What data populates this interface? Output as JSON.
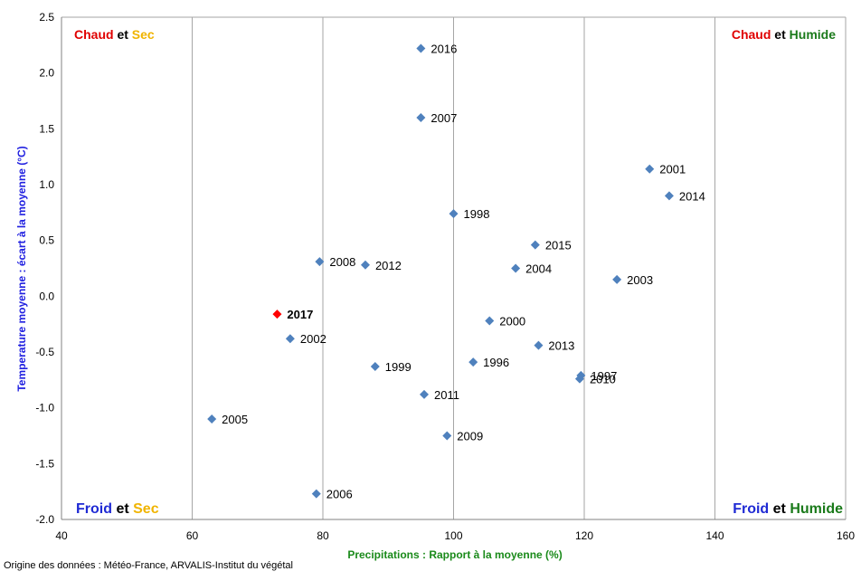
{
  "chart_data": {
    "type": "scatter",
    "xlabel": "Precipitations : Rapport à la moyenne (%)",
    "ylabel": "Temperature moyenne : écart à la moyenne (°C)",
    "xlim": [
      40,
      160
    ],
    "ylim": [
      -2.0,
      2.5
    ],
    "x_ticks": [
      40,
      60,
      80,
      100,
      120,
      140,
      160
    ],
    "y_ticks": [
      2.5,
      2.0,
      1.5,
      1.0,
      0.5,
      0.0,
      -0.5,
      -1.0,
      -1.5,
      -2.0
    ],
    "grid": "vertical",
    "points": [
      {
        "label": "2016",
        "x": 95,
        "y": 2.22,
        "highlight": false
      },
      {
        "label": "2007",
        "x": 95,
        "y": 1.6,
        "highlight": false
      },
      {
        "label": "2001",
        "x": 130,
        "y": 1.14,
        "highlight": false
      },
      {
        "label": "2014",
        "x": 133,
        "y": 0.9,
        "highlight": false
      },
      {
        "label": "1998",
        "x": 100,
        "y": 0.74,
        "highlight": false
      },
      {
        "label": "2015",
        "x": 112.5,
        "y": 0.46,
        "highlight": false
      },
      {
        "label": "2008",
        "x": 79.5,
        "y": 0.31,
        "highlight": false
      },
      {
        "label": "2012",
        "x": 86.5,
        "y": 0.28,
        "highlight": false
      },
      {
        "label": "2004",
        "x": 109.5,
        "y": 0.25,
        "highlight": false
      },
      {
        "label": "2003",
        "x": 125,
        "y": 0.15,
        "highlight": false
      },
      {
        "label": "2017",
        "x": 73,
        "y": -0.16,
        "highlight": true
      },
      {
        "label": "2000",
        "x": 105.5,
        "y": -0.22,
        "highlight": false
      },
      {
        "label": "2002",
        "x": 75,
        "y": -0.38,
        "highlight": false
      },
      {
        "label": "2013",
        "x": 113,
        "y": -0.44,
        "highlight": false
      },
      {
        "label": "1996",
        "x": 103,
        "y": -0.59,
        "highlight": false
      },
      {
        "label": "1999",
        "x": 88,
        "y": -0.63,
        "highlight": false
      },
      {
        "label": "1997",
        "x": 119.5,
        "y": -0.71,
        "highlight": false
      },
      {
        "label": "2010",
        "x": 119.3,
        "y": -0.74,
        "highlight": false
      },
      {
        "label": "2011",
        "x": 95.5,
        "y": -0.88,
        "highlight": false
      },
      {
        "label": "2005",
        "x": 63,
        "y": -1.1,
        "highlight": false
      },
      {
        "label": "2009",
        "x": 99,
        "y": -1.25,
        "highlight": false
      },
      {
        "label": "2006",
        "x": 79,
        "y": -1.77,
        "highlight": false
      }
    ],
    "annotations": {
      "top_left": [
        {
          "text": "Chaud",
          "color": "#e00000"
        },
        {
          "text": " et ",
          "color": "#000000"
        },
        {
          "text": "Sec",
          "color": "#f0b400"
        }
      ],
      "top_right": [
        {
          "text": "Chaud",
          "color": "#e00000"
        },
        {
          "text": " et ",
          "color": "#000000"
        },
        {
          "text": "Humide",
          "color": "#1a7a1a"
        }
      ],
      "bottom_left": [
        {
          "text": "Froid",
          "color": "#1f2ad4"
        },
        {
          "text": " et ",
          "color": "#000000"
        },
        {
          "text": "Sec",
          "color": "#f0b400"
        }
      ],
      "bottom_right": [
        {
          "text": "Froid",
          "color": "#1f2ad4"
        },
        {
          "text": " et ",
          "color": "#000000"
        },
        {
          "text": "Humide",
          "color": "#1a7a1a"
        }
      ]
    },
    "colors": {
      "marker": "#4f81bd",
      "highlight": "#ff0000",
      "xlabel": "#1a8a1a",
      "ylabel": "#2020e0",
      "grid": "#a6a6a6"
    }
  },
  "source": "Origine des données : Météo-France, ARVALIS-Institut du végétal"
}
